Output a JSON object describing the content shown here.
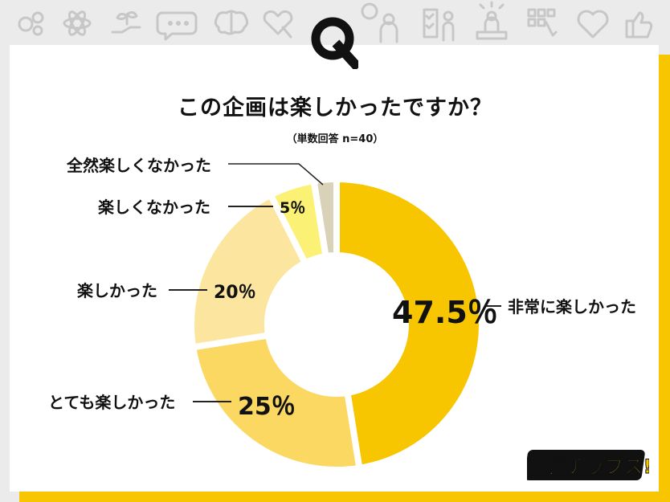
{
  "header": {
    "q_letter": "Q",
    "icons": [
      "gears-icon",
      "atom-icon",
      "plant-hand-icon",
      "chat-bubble-icon",
      "brain-icon",
      "heart-hand-icon",
      "question-person-icon",
      "checklist-person-icon",
      "award-person-icon",
      "grid-touch-icon",
      "heart-outline-icon",
      "thumbs-up-icon"
    ]
  },
  "chart_data": {
    "type": "pie",
    "style": "donut",
    "title": "この企画は楽しかったですか？",
    "subtitle": "（単数回答 n=40）",
    "unit": "%",
    "categories": [
      "非常に楽しかった",
      "とても楽しかった",
      "楽しかった",
      "楽しくなかった",
      "全然楽しくなかった"
    ],
    "values": [
      47.5,
      25,
      20,
      5,
      2.5
    ],
    "value_labels": [
      "47.5％",
      "25％",
      "20％",
      "5％",
      ""
    ],
    "colors": [
      "#f7c600",
      "#fbd862",
      "#fce69f",
      "#faf175",
      "#d9d1b8"
    ]
  },
  "brand": {
    "logo_text": "社長チップス!",
    "accent_color": "#f7c600"
  }
}
